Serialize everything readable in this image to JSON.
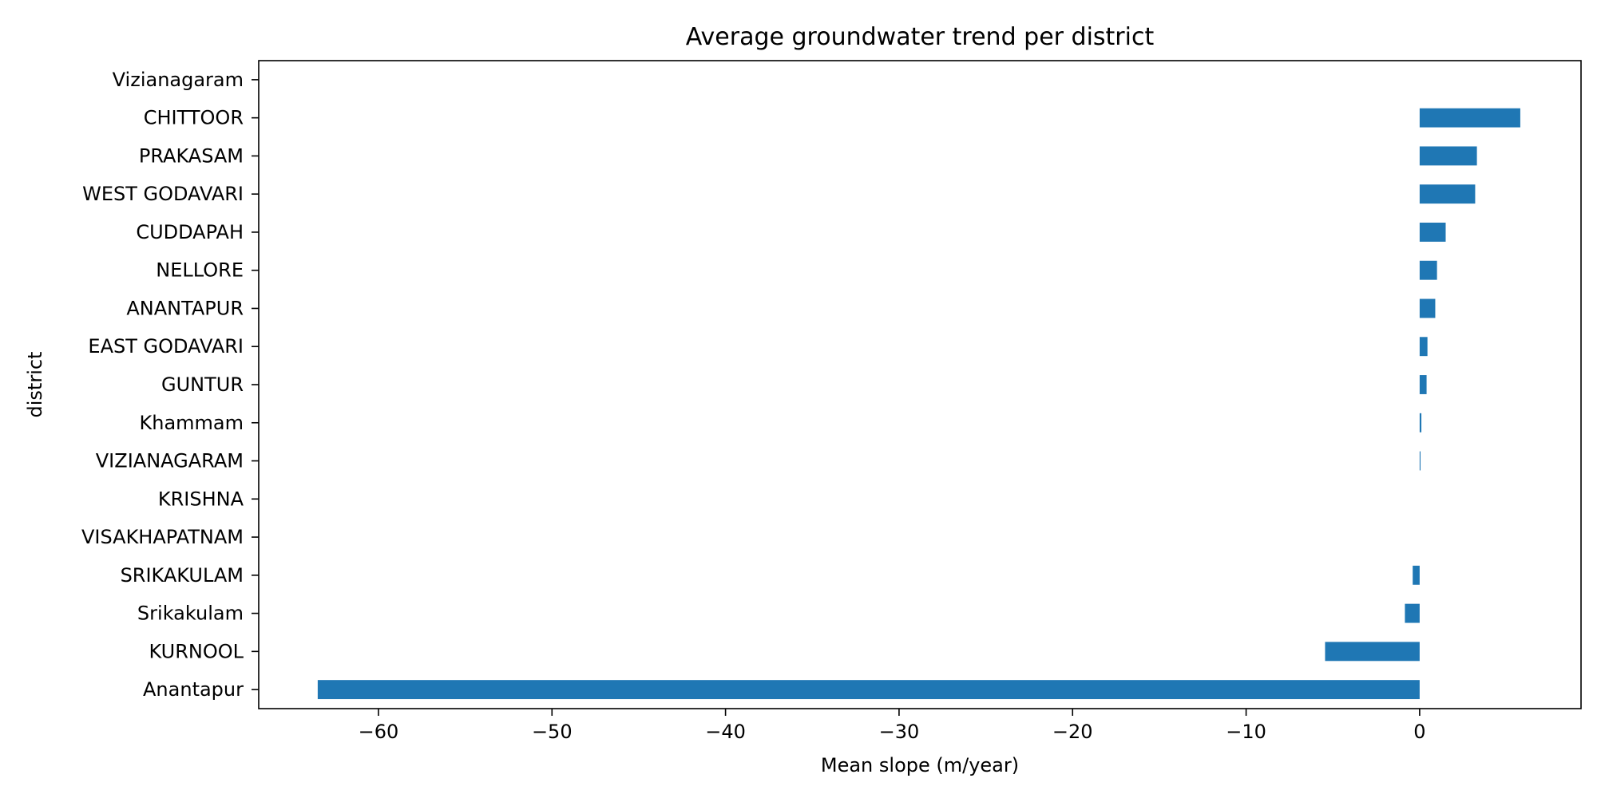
{
  "chart_data": {
    "type": "bar",
    "orientation": "horizontal",
    "title": "Average groundwater trend per district",
    "xlabel": "Mean slope (m/year)",
    "ylabel": "district",
    "categories": [
      "Vizianagaram",
      "CHITTOOR",
      "PRAKASAM",
      "WEST GODAVARI",
      "CUDDAPAH",
      "NELLORE",
      "ANANTAPUR",
      "EAST GODAVARI",
      "GUNTUR",
      "Khammam",
      "VIZIANAGARAM",
      "KRISHNA",
      "VISAKHAPATNAM",
      "SRIKAKULAM",
      "Srikakulam",
      "KURNOOL",
      "Anantapur"
    ],
    "values": [
      0.0,
      5.8,
      3.3,
      3.2,
      1.5,
      1.0,
      0.9,
      0.45,
      0.4,
      0.1,
      0.05,
      0.0,
      0.0,
      -0.4,
      -0.85,
      -5.45,
      -63.5
    ],
    "xlim": [
      -66.9,
      9.3
    ],
    "xticks": [
      -60,
      -50,
      -40,
      -30,
      -20,
      -10,
      0
    ],
    "xtick_labels": [
      "−60",
      "−50",
      "−40",
      "−30",
      "−20",
      "−10",
      "0"
    ],
    "bar_color": "#1f77b4",
    "grid": false,
    "legend": "none"
  }
}
